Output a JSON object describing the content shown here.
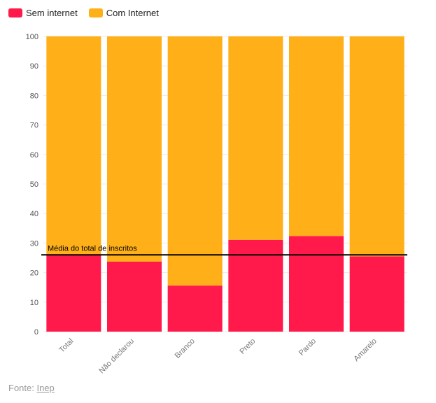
{
  "chart_data": {
    "type": "bar",
    "stacked": true,
    "categories": [
      "Total",
      "Não declarou",
      "Branco",
      "Preto",
      "Pardo",
      "Amarelo"
    ],
    "series": [
      {
        "name": "Sem internet",
        "color": "#ff1a4b",
        "values": [
          26,
          23.7,
          15.6,
          31.1,
          32.4,
          25.5
        ]
      },
      {
        "name": "Com Internet",
        "color": "#ffb019",
        "values": [
          74,
          76.3,
          84.4,
          68.9,
          67.6,
          74.5
        ]
      }
    ],
    "ylim": [
      0,
      100
    ],
    "yticks": [
      0,
      10,
      20,
      30,
      40,
      50,
      60,
      70,
      80,
      90,
      100
    ],
    "reference_line": {
      "value": 26,
      "label": "Média do total de inscritos",
      "color": "#000000"
    },
    "legend_position": "top-left"
  },
  "footer": {
    "prefix": "Fonte: ",
    "link_text": "Inep"
  }
}
